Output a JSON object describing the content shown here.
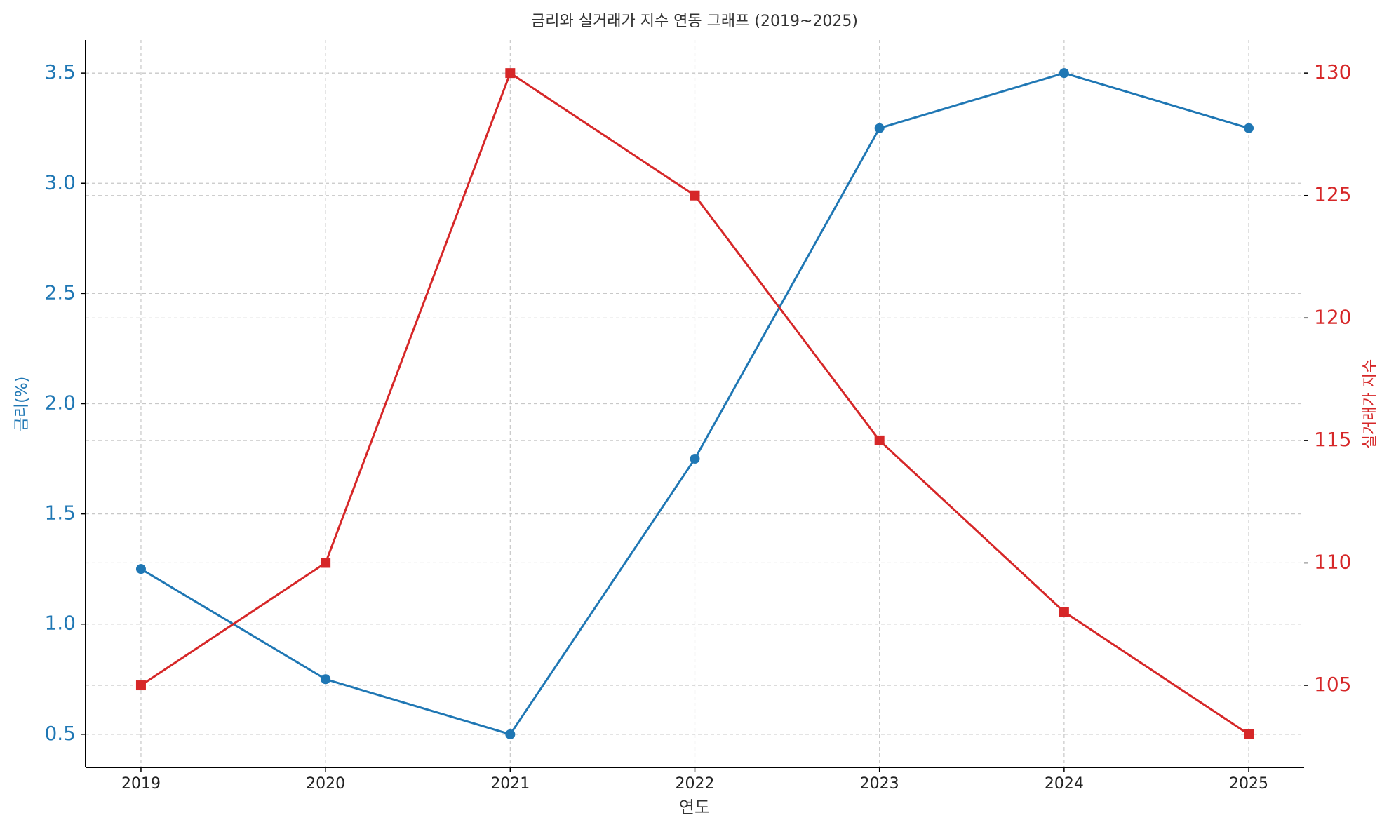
{
  "chart_data": {
    "type": "line",
    "title": "금리와 실거래가 지수 연동 그래프 (2019~2025)",
    "x_label": "연도",
    "y_label": "금리(%)",
    "y2_label": "실거래가 지수",
    "x": [
      2019,
      2020,
      2021,
      2022,
      2023,
      2024,
      2025
    ],
    "xlim": [
      2018.7,
      2025.3
    ],
    "xticks": [
      2019,
      2020,
      2021,
      2022,
      2023,
      2024,
      2025
    ],
    "ylim": [
      0.35,
      3.65
    ],
    "yticks": [
      0.5,
      {
        "value": 1,
        "label": "1.0"
      },
      1.5,
      {
        "value": 2,
        "label": "2.0"
      },
      2.5,
      {
        "value": 3,
        "label": "3.0"
      },
      3.5
    ],
    "y2lim": [
      101.65,
      131.35
    ],
    "y2ticks": [
      105,
      110,
      115,
      120,
      125,
      130
    ],
    "grid": true,
    "series": [
      {
        "name": "금리(%)",
        "color": "#1f77b4",
        "marker": "circle",
        "axis": "y",
        "values": [
          1.25,
          0.75,
          0.5,
          1.75,
          3.25,
          3.5,
          3.25
        ]
      },
      {
        "name": "실거래가 지수",
        "color": "#d62728",
        "marker": "square",
        "axis": "y2",
        "values": [
          105,
          110,
          130,
          125,
          115,
          108,
          103
        ]
      }
    ]
  }
}
